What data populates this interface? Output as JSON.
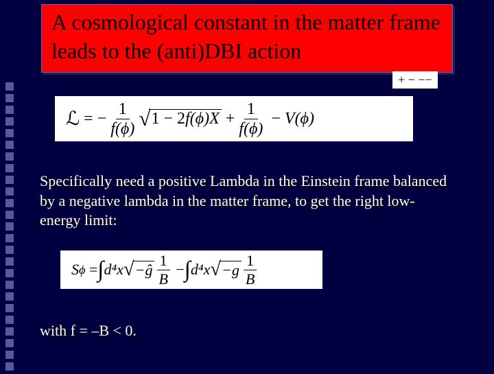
{
  "title": "A cosmological constant in the matter frame leads to the (anti)DBI action",
  "metric_signature": "+ − −−",
  "body1": "Specifically need a positive Lambda in the Einstein frame balanced by a negative lambda in the matter frame, to get the right low-energy limit:",
  "body2": "with f = –B < 0.",
  "squares": {
    "count": 25,
    "color": "#5858a0"
  },
  "colors": {
    "background": "#000040",
    "title_bg": "#ff0000",
    "title_text": "#000000",
    "body_text": "#ffffff",
    "eq_bg": "#ffffff",
    "eq_text": "#000000"
  },
  "fonts": {
    "title_size": 32,
    "body_size": 22,
    "eq_size": 24
  },
  "equations": {
    "eq1": {
      "lhs": "ℒ",
      "term1_num": "1",
      "term1_den": "f(ϕ)",
      "sqrt_arg_a": "1 − 2",
      "sqrt_arg_b": "f(ϕ)X",
      "term2_num": "1",
      "term2_den": "f(ϕ)",
      "term3": "V(ϕ)"
    },
    "eq2": {
      "lhs": "S",
      "lhs_sub": "ϕ",
      "int_measure1": "d⁴x",
      "sqrt1": "−ĝ",
      "frac1_num": "1",
      "frac1_den": "B",
      "int_measure2": "d⁴x",
      "sqrt2": "−g",
      "frac2_num": "1",
      "frac2_den": "B"
    }
  }
}
